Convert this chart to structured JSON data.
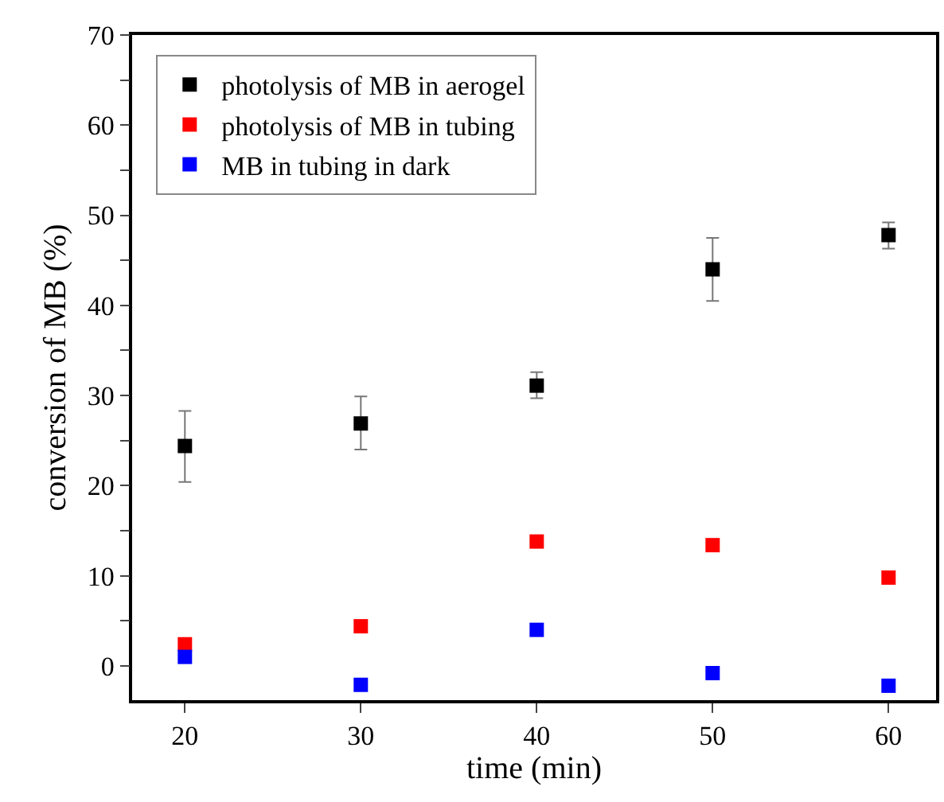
{
  "chart_data": {
    "type": "scatter",
    "xlabel": "time (min)",
    "ylabel": "conversion of MB (%)",
    "x": [
      20,
      30,
      40,
      50,
      60
    ],
    "series": [
      {
        "name": "photolysis of MB in aerogel",
        "color": "#000000",
        "values": [
          24.4,
          26.9,
          31.1,
          44.0,
          47.8
        ],
        "errors": [
          [
            20.4,
            28.3
          ],
          [
            24.0,
            29.9
          ],
          [
            29.7,
            32.6
          ],
          [
            40.5,
            47.5
          ],
          [
            46.3,
            49.2
          ]
        ]
      },
      {
        "name": "photolysis of MB in tubing",
        "color": "#ff0000",
        "values": [
          2.4,
          4.4,
          13.8,
          13.4,
          9.8
        ]
      },
      {
        "name": "MB in tubing in dark",
        "color": "#0000ff",
        "values": [
          1.0,
          -2.1,
          4.0,
          -0.8,
          -2.2
        ]
      }
    ],
    "xlim": [
      17,
      62.7
    ],
    "xticks": [
      20,
      30,
      40,
      50,
      60
    ],
    "ylim": [
      -3.8,
      70
    ],
    "yticks": [
      0,
      {
        "value": 5,
        "label": null
      },
      10,
      {
        "value": 15,
        "label": null
      },
      20,
      {
        "value": 25,
        "label": null
      },
      30,
      {
        "value": 35,
        "label": null
      },
      40,
      {
        "value": 45,
        "label": null
      },
      50,
      {
        "value": 55,
        "label": null
      },
      60,
      {
        "value": 65,
        "label": null
      },
      70
    ],
    "marker": "square",
    "grid": false,
    "legend": "top left"
  }
}
